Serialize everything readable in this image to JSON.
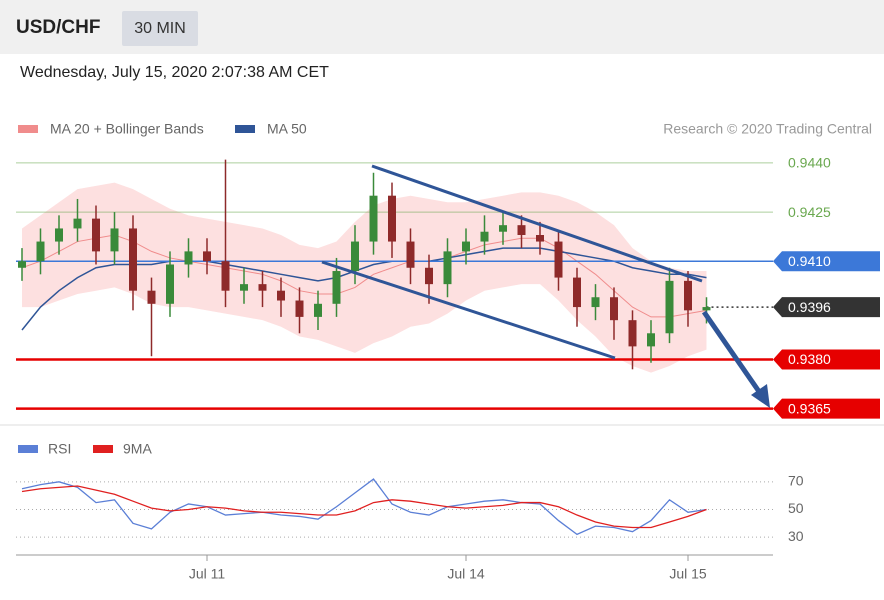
{
  "header": {
    "symbol": "USD/CHF",
    "interval": "30 MIN"
  },
  "timestamp": "Wednesday, July 15, 2020 2:07:38 AM CET",
  "chart_data": [
    {
      "type": "candlestick",
      "source": "Research © 2020 Trading Central",
      "ylim": [
        0.936,
        0.9447
      ],
      "up_color": "#3a8a3a",
      "down_color": "#8e2a2a",
      "open": [
        0.9408,
        0.941,
        0.9416,
        0.942,
        0.9423,
        0.9413,
        0.942,
        0.9401,
        0.9397,
        0.9409,
        0.9413,
        0.941,
        0.9401,
        0.9403,
        0.9401,
        0.9398,
        0.9393,
        0.9397,
        0.9407,
        0.9416,
        0.943,
        0.9416,
        0.9408,
        0.9403,
        0.9413,
        0.9416,
        0.9419,
        0.9421,
        0.9418,
        0.9416,
        0.9405,
        0.9396,
        0.9399,
        0.9392,
        0.9384,
        0.9388,
        0.9404,
        0.9395
      ],
      "high": [
        0.9414,
        0.942,
        0.9424,
        0.9429,
        0.9427,
        0.9425,
        0.9424,
        0.9405,
        0.9413,
        0.9417,
        0.9417,
        0.9441,
        0.9408,
        0.9407,
        0.9405,
        0.9402,
        0.9401,
        0.9411,
        0.9421,
        0.9437,
        0.9434,
        0.942,
        0.9412,
        0.9417,
        0.942,
        0.9424,
        0.9425,
        0.9424,
        0.9422,
        0.9419,
        0.9408,
        0.9403,
        0.9402,
        0.9395,
        0.9392,
        0.9408,
        0.9407,
        0.9399
      ],
      "low": [
        0.9404,
        0.9406,
        0.9412,
        0.9416,
        0.9409,
        0.9409,
        0.9395,
        0.9381,
        0.9393,
        0.9405,
        0.9406,
        0.9396,
        0.9397,
        0.9396,
        0.9393,
        0.9388,
        0.9389,
        0.9393,
        0.9403,
        0.9412,
        0.9411,
        0.9403,
        0.9397,
        0.9399,
        0.9409,
        0.9412,
        0.9415,
        0.9414,
        0.9412,
        0.9401,
        0.939,
        0.9392,
        0.9386,
        0.9377,
        0.9379,
        0.9385,
        0.939,
        0.9391
      ],
      "close": [
        0.941,
        0.9416,
        0.942,
        0.9423,
        0.9413,
        0.942,
        0.9401,
        0.9397,
        0.9409,
        0.9413,
        0.941,
        0.9401,
        0.9403,
        0.9401,
        0.9398,
        0.9393,
        0.9397,
        0.9407,
        0.9416,
        0.943,
        0.9416,
        0.9408,
        0.9403,
        0.9413,
        0.9416,
        0.9419,
        0.9421,
        0.9418,
        0.9416,
        0.9405,
        0.9396,
        0.9399,
        0.9392,
        0.9384,
        0.9388,
        0.9404,
        0.9395,
        0.9396
      ],
      "series": [
        {
          "name": "MA 20 + Bollinger Bands",
          "color": "#f08c8c",
          "band_color": "#fde0e0",
          "values": [
            0.9408,
            0.941,
            0.9413,
            0.9416,
            0.9417,
            0.9418,
            0.9416,
            0.9413,
            0.9411,
            0.941,
            0.9409,
            0.9408,
            0.9407,
            0.9406,
            0.9404,
            0.9401,
            0.94,
            0.94,
            0.9402,
            0.9406,
            0.9408,
            0.941,
            0.941,
            0.9411,
            0.9413,
            0.9415,
            0.9416,
            0.9417,
            0.9417,
            0.9414,
            0.941,
            0.9406,
            0.9401,
            0.9396,
            0.9393,
            0.9393,
            0.9394,
            0.9395
          ],
          "upper": [
            0.942,
            0.9424,
            0.9428,
            0.9432,
            0.9433,
            0.9434,
            0.9432,
            0.9429,
            0.9426,
            0.9424,
            0.9423,
            0.9422,
            0.9421,
            0.942,
            0.9418,
            0.9415,
            0.9414,
            0.9416,
            0.9422,
            0.9427,
            0.9429,
            0.943,
            0.9429,
            0.9428,
            0.9428,
            0.9429,
            0.943,
            0.9431,
            0.9431,
            0.943,
            0.9428,
            0.9425,
            0.9421,
            0.9414,
            0.941,
            0.9408,
            0.9407,
            0.9407
          ],
          "lower": [
            0.9396,
            0.9396,
            0.9398,
            0.94,
            0.9401,
            0.9402,
            0.94,
            0.9397,
            0.9396,
            0.9396,
            0.9395,
            0.9394,
            0.9393,
            0.9392,
            0.939,
            0.9387,
            0.9386,
            0.9384,
            0.9382,
            0.9385,
            0.9387,
            0.939,
            0.9391,
            0.9394,
            0.9398,
            0.9401,
            0.9402,
            0.9403,
            0.9403,
            0.9398,
            0.9392,
            0.9387,
            0.9381,
            0.9378,
            0.9376,
            0.9378,
            0.9381,
            0.9383
          ]
        },
        {
          "name": "MA 50",
          "color": "#2f5597",
          "values": [
            0.9389,
            0.9396,
            0.9401,
            0.9405,
            0.9408,
            0.9409,
            0.9409,
            0.9409,
            0.941,
            0.941,
            0.941,
            0.9409,
            0.9408,
            0.9407,
            0.9406,
            0.9405,
            0.9404,
            0.9405,
            0.9407,
            0.9409,
            0.941,
            0.941,
            0.941,
            0.9411,
            0.9412,
            0.9413,
            0.9414,
            0.9414,
            0.9414,
            0.9413,
            0.9412,
            0.9411,
            0.941,
            0.9408,
            0.9407,
            0.9406,
            0.9406,
            0.9405
          ]
        }
      ],
      "levels": [
        {
          "value": 0.944,
          "label": "0.9440",
          "color": "#6aa84f",
          "box": false,
          "line": "solid"
        },
        {
          "value": 0.9425,
          "label": "0.9425",
          "color": "#6aa84f",
          "box": false,
          "line": "solid"
        },
        {
          "value": 0.941,
          "label": "0.9410",
          "color": "#3c78d8",
          "box": true,
          "line": "solid"
        },
        {
          "value": 0.9396,
          "label": "0.9396",
          "color": "#333333",
          "box": true,
          "line": "dotted"
        },
        {
          "value": 0.938,
          "label": "0.9380",
          "color": "#e60000",
          "box": true,
          "line": "solid"
        },
        {
          "value": 0.9365,
          "label": "0.9365",
          "color": "#e60000",
          "box": true,
          "line": "solid"
        }
      ]
    },
    {
      "type": "line",
      "ylim": [
        20,
        80
      ],
      "yticks": [
        30,
        50,
        70
      ],
      "xticks": [
        {
          "value": 10,
          "label": "Jul 11"
        },
        {
          "value": 24,
          "label": "Jul 14"
        },
        {
          "value": 36,
          "label": "Jul 15"
        }
      ],
      "series": [
        {
          "name": "RSI",
          "color": "#5b7fd6",
          "values": [
            65,
            68,
            70,
            66,
            55,
            57,
            40,
            36,
            48,
            54,
            52,
            46,
            47,
            48,
            46,
            45,
            43,
            52,
            62,
            72,
            54,
            48,
            46,
            52,
            54,
            56,
            57,
            55,
            54,
            42,
            32,
            38,
            37,
            34,
            42,
            57,
            48,
            50
          ]
        },
        {
          "name": "9MA",
          "color": "#e02020",
          "values": [
            63,
            65,
            66,
            67,
            64,
            61,
            56,
            51,
            49,
            50,
            52,
            51,
            49,
            48,
            48,
            47,
            46,
            46,
            49,
            55,
            57,
            56,
            54,
            52,
            51,
            52,
            53,
            55,
            55,
            52,
            46,
            41,
            38,
            37,
            37,
            41,
            45,
            50
          ]
        }
      ]
    }
  ]
}
